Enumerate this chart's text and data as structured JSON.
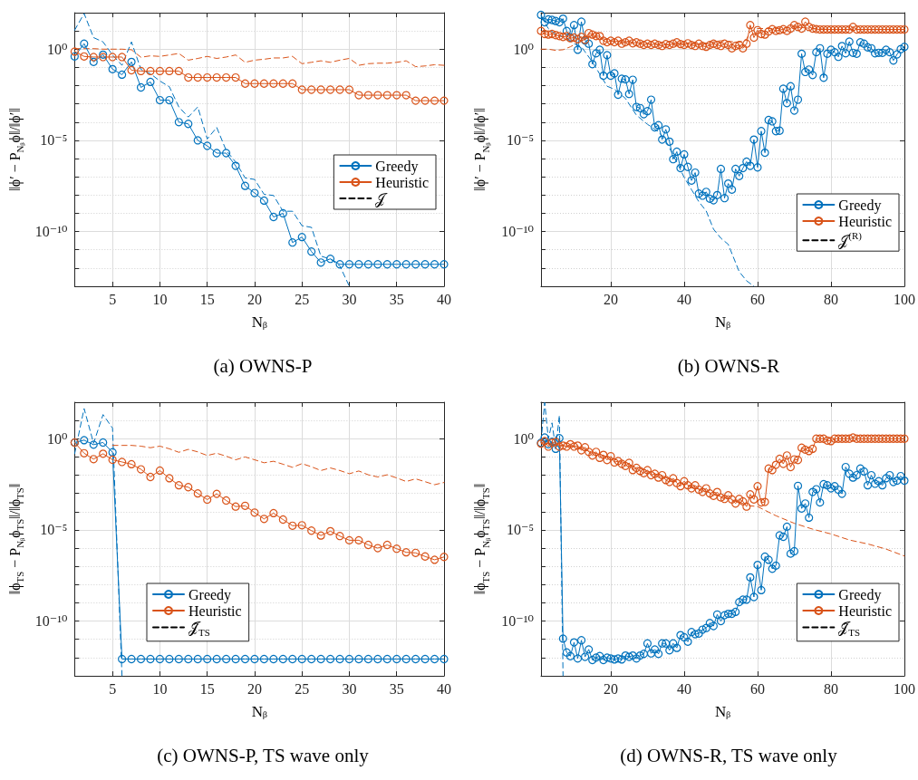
{
  "chart_data": [
    {
      "type": "line",
      "title": "(a) OWNS-P",
      "xlabel": "Nᵦ",
      "ylabel": "‖ϕ′ − P$_{Nᵦ}$ϕ‖/‖ϕ′‖",
      "log": "y",
      "grid": true,
      "legend": "right",
      "xlim": [
        1,
        40
      ],
      "xticks": [
        5,
        10,
        15,
        20,
        25,
        30,
        35,
        40
      ],
      "ylim": [
        1e-13,
        100
      ],
      "yticks": [
        {
          "value": 1e-13,
          "label": null
        },
        {
          "value": 1e-12,
          "label": null
        },
        {
          "value": 1e-11,
          "label": null
        },
        {
          "value": 1e-10,
          "label": "10⁻¹⁰"
        },
        {
          "value": 1e-09,
          "label": null
        },
        {
          "value": 1e-08,
          "label": null
        },
        {
          "value": 1e-07,
          "label": null
        },
        {
          "value": 1e-06,
          "label": null
        },
        {
          "value": 1e-05,
          "label": "10⁻⁵"
        },
        {
          "value": 0.0001,
          "label": null
        },
        {
          "value": 0.001,
          "label": null
        },
        {
          "value": 0.01,
          "label": null
        },
        {
          "value": 0.1,
          "label": null
        },
        {
          "value": 1,
          "label": "10⁰"
        },
        {
          "value": 10,
          "label": null
        },
        {
          "value": 100,
          "label": null
        }
      ],
      "x": [
        1,
        2,
        3,
        4,
        5,
        6,
        7,
        8,
        9,
        10,
        11,
        12,
        13,
        14,
        15,
        16,
        17,
        18,
        19,
        20,
        21,
        22,
        23,
        24,
        25,
        26,
        27,
        28,
        29,
        30,
        31,
        32,
        33,
        34,
        35,
        36,
        37,
        38,
        39,
        40
      ],
      "series": [
        {
          "color": "#0072bd",
          "marker": "none",
          "line_style": "dashed",
          "x": [
            1,
            2,
            3,
            4,
            5,
            6,
            7,
            8,
            9,
            10,
            11,
            12,
            13,
            14,
            15,
            16,
            17,
            18,
            19,
            20,
            21,
            22,
            23,
            24,
            25,
            26,
            27,
            28,
            29,
            30
          ],
          "values": [
            11,
            90,
            4.3,
            2.5,
            0.48,
            0.13,
            2.5,
            0.078,
            0.045,
            0.018,
            0.0087,
            0.00068,
            0.00019,
            0.00068,
            1.2e-05,
            5.1e-05,
            2.8e-06,
            6.5e-07,
            8.7e-08,
            7.2e-08,
            1.1e-08,
            9.5e-09,
            1.3e-09,
            1.3e-09,
            2.1e-10,
            1.7e-10,
            4.5e-12,
            3.1e-12,
            1.3e-12,
            1e-13
          ]
        },
        {
          "color": "#d95319",
          "marker": "none",
          "line_style": "dashed",
          "values": [
            1.07,
            1.07,
            1.07,
            1,
            1,
            1,
            0.93,
            0.36,
            0.43,
            0.4,
            0.48,
            0.58,
            0.25,
            0.31,
            0.4,
            0.31,
            0.37,
            0.48,
            0.19,
            0.25,
            0.28,
            0.33,
            0.33,
            0.4,
            0.16,
            0.19,
            0.23,
            0.19,
            0.25,
            0.31,
            0.13,
            0.16,
            0.17,
            0.17,
            0.19,
            0.23,
            0.11,
            0.12,
            0.14,
            0.13
          ]
        },
        {
          "name": "Greedy",
          "color": "#0072bd",
          "marker": "circle",
          "values": [
            0.4,
            2,
            0.2,
            0.5,
            0.08,
            0.04,
            0.2,
            0.008,
            0.016,
            0.0016,
            0.0016,
            0.0001,
            8e-05,
            1e-05,
            5e-06,
            2e-06,
            2e-06,
            4e-07,
            3.2e-08,
            1.3e-08,
            5e-09,
            6.3e-10,
            1e-09,
            2.5e-11,
            5e-11,
            8e-12,
            2e-12,
            3.2e-12,
            1.6e-12,
            1.6e-12,
            1.6e-12,
            1.6e-12,
            1.6e-12,
            1.6e-12,
            1.6e-12,
            1.6e-12,
            1.6e-12,
            1.6e-12,
            1.6e-12,
            1.6e-12
          ]
        },
        {
          "name": "Heuristic",
          "color": "#d95319",
          "marker": "circle",
          "values": [
            0.74,
            0.4,
            0.37,
            0.37,
            0.37,
            0.37,
            0.07,
            0.063,
            0.063,
            0.063,
            0.063,
            0.063,
            0.028,
            0.028,
            0.028,
            0.028,
            0.028,
            0.028,
            0.013,
            0.013,
            0.013,
            0.013,
            0.013,
            0.013,
            0.006,
            0.006,
            0.006,
            0.006,
            0.006,
            0.006,
            0.003,
            0.003,
            0.003,
            0.003,
            0.003,
            0.003,
            0.0015,
            0.0015,
            0.0015,
            0.0015
          ]
        },
        {
          "name": "𝒥",
          "color": "#000000",
          "marker": "none",
          "line_style": "dashed",
          "values": [
            null,
            null,
            null,
            null,
            null,
            null,
            null,
            null,
            null,
            null,
            null,
            null,
            null,
            null,
            null,
            null,
            null,
            null,
            null,
            null,
            null,
            null,
            null,
            null,
            null,
            null,
            null,
            null,
            null,
            null,
            null,
            null,
            null,
            null,
            null,
            null,
            null,
            null,
            null,
            null
          ]
        }
      ]
    },
    {
      "type": "line",
      "title": "(b) OWNS-R",
      "xlabel": "Nᵦ",
      "ylabel": "‖ϕ′ − P$_{Nᵦ}$ϕ‖/‖ϕ′‖",
      "log": "y",
      "grid": true,
      "legend": "bottom right",
      "xlim": [
        1,
        100
      ],
      "xticks": [
        20,
        40,
        60,
        80,
        100
      ],
      "ylim": [
        1e-13,
        100
      ],
      "yticks": [
        {
          "value": 1e-13,
          "label": null
        },
        {
          "value": 1e-12,
          "label": null
        },
        {
          "value": 1e-11,
          "label": null
        },
        {
          "value": 1e-10,
          "label": "10⁻¹⁰"
        },
        {
          "value": 1e-09,
          "label": null
        },
        {
          "value": 1e-08,
          "label": null
        },
        {
          "value": 1e-07,
          "label": null
        },
        {
          "value": 1e-06,
          "label": null
        },
        {
          "value": 1e-05,
          "label": "10⁻⁵"
        },
        {
          "value": 0.0001,
          "label": null
        },
        {
          "value": 0.001,
          "label": null
        },
        {
          "value": 0.01,
          "label": null
        },
        {
          "value": 0.1,
          "label": null
        },
        {
          "value": 1,
          "label": "10⁰"
        },
        {
          "value": 10,
          "label": null
        },
        {
          "value": 100,
          "label": null
        }
      ],
      "x": [
        1,
        2,
        3,
        4,
        5,
        6,
        7,
        8,
        9,
        10,
        11,
        12,
        13,
        14,
        15,
        16,
        17,
        18,
        19,
        20,
        21,
        22,
        23,
        24,
        25,
        26,
        27,
        28,
        29,
        30,
        31,
        32,
        33,
        34,
        35,
        36,
        37,
        38,
        39,
        40,
        41,
        42,
        43,
        44,
        45,
        46,
        47,
        48,
        49,
        50,
        51,
        52,
        53,
        54,
        55,
        56,
        57,
        58,
        59,
        60,
        61,
        62,
        63,
        64,
        65,
        66,
        67,
        68,
        69,
        70,
        71,
        72,
        73,
        74,
        75,
        76,
        77,
        78,
        79,
        80,
        81,
        82,
        83,
        84,
        85,
        86,
        87,
        88,
        89,
        90,
        91,
        92,
        93,
        94,
        95,
        96,
        97,
        98,
        99,
        100
      ],
      "series": [
        {
          "color": "#0072bd",
          "marker": "none",
          "line_style": "dashed",
          "x": [
            1,
            3,
            5,
            8,
            10,
            12,
            15,
            17,
            19,
            21,
            24,
            27,
            30,
            33,
            35,
            38,
            40,
            42,
            44,
            46,
            48,
            50,
            52,
            55,
            57,
            59
          ],
          "values": [
            63,
            13.5,
            6.3,
            4.3,
            2,
            1.35,
            0.2,
            0.043,
            0.0093,
            0.0063,
            0.002,
            0.00024,
            7.6e-05,
            3e-05,
            9.3e-06,
            6.3e-07,
            9.3e-08,
            2e-08,
            4.3e-09,
            1.35e-09,
            1.35e-10,
            4.3e-11,
            2e-11,
            6.3e-13,
            2e-13,
            1e-13
          ]
        },
        {
          "color": "#d95319",
          "marker": "none",
          "line_style": "dashed",
          "x": [
            1,
            3,
            5,
            7,
            9,
            12,
            15,
            20,
            25,
            30,
            35,
            40,
            45,
            50,
            55,
            57,
            58,
            60,
            65,
            70,
            75,
            80,
            90,
            100
          ],
          "values": [
            1,
            1,
            0.86,
            0.93,
            1.35,
            2.9,
            5.2,
            2.9,
            2.4,
            2,
            1.7,
            2,
            2,
            2.9,
            2.4,
            3.5,
            9.3,
            13.5,
            13.5,
            16.6,
            13.5,
            12,
            12,
            12
          ]
        },
        {
          "name": "Greedy",
          "color": "#0072bd",
          "marker": "circle",
          "values": [
            76,
            30,
            43,
            40,
            35,
            30,
            47,
            10,
            4.3,
            21,
            0.93,
            32,
            3,
            2,
            0.15,
            0.59,
            0.93,
            0.035,
            0.47,
            0.035,
            0.047,
            0.0032,
            0.024,
            0.022,
            0.0035,
            0.021,
            0.00068,
            0.00059,
            0.00027,
            0.0004,
            0.0017,
            5.2e-05,
            6.8e-05,
            1.1e-05,
            4e-05,
            8.5e-06,
            9.3e-07,
            2.4e-06,
            3e-07,
            1.7e-06,
            3.5e-07,
            6.3e-08,
            1.7e-07,
            1.2e-08,
            9.3e-09,
            1.5e-08,
            6.3e-09,
            5.2e-09,
            1e-08,
            2.7e-07,
            6.8e-09,
            4.3e-08,
            2e-08,
            2.7e-07,
            1.1e-07,
            3e-07,
            6.8e-07,
            4e-07,
            1.1e-05,
            3.3e-07,
            3.2e-05,
            2.1e-06,
            0.00013,
            0.00011,
            3.2e-05,
            3.4e-05,
            0.0068,
            0.0011,
            0.0093,
            0.00043,
            0.0017,
            0.56,
            0.056,
            0.076,
            0.038,
            0.68,
            1.12,
            0.027,
            0.56,
            0.93,
            0.68,
            0.38,
            1.48,
            0.59,
            2.6,
            0.63,
            0.56,
            2.4,
            2,
            1.26,
            1.12,
            0.59,
            0.63,
            0.63,
            0.93,
            0.68,
            0.24,
            0.52,
            1,
            1.35
          ]
        },
        {
          "name": "Heuristic",
          "color": "#d95319",
          "marker": "circle",
          "values": [
            10,
            6.8,
            6.3,
            6.8,
            5.9,
            5.2,
            4.7,
            5.2,
            4,
            4.3,
            3.5,
            4.7,
            3.2,
            7.6,
            6.3,
            5.2,
            5.2,
            2.9,
            2.4,
            2.9,
            2.4,
            2.9,
            2,
            2.4,
            2.9,
            2.1,
            2.4,
            2,
            1.7,
            2,
            1.7,
            2,
            1.7,
            1.5,
            1.9,
            1.7,
            2,
            2.4,
            1.9,
            1.7,
            2.1,
            1.7,
            1.5,
            2,
            1.5,
            1.35,
            1.7,
            2,
            1.7,
            1.5,
            2,
            1.7,
            1.12,
            1.5,
            1.7,
            1.12,
            2,
            21,
            4.3,
            11,
            6.8,
            6.3,
            9.3,
            12.6,
            10,
            11,
            12.6,
            10,
            13.5,
            21,
            16.6,
            13.5,
            32,
            16.6,
            13.5,
            12.6,
            12,
            12,
            12,
            12,
            12,
            12,
            12,
            12,
            12,
            16.6,
            12,
            12,
            12,
            12,
            12,
            12,
            12,
            12,
            12,
            12,
            12,
            12,
            12,
            12
          ]
        },
        {
          "name": "𝒥$^{(R)}$",
          "color": "#000000",
          "marker": "none",
          "line_style": "dashed",
          "values": [
            null,
            null,
            null,
            null,
            null,
            null,
            null,
            null,
            null,
            null,
            null,
            null,
            null,
            null,
            null,
            null,
            null,
            null,
            null,
            null,
            null,
            null,
            null,
            null,
            null,
            null,
            null,
            null,
            null,
            null,
            null,
            null,
            null,
            null,
            null,
            null,
            null,
            null,
            null,
            null,
            null,
            null,
            null,
            null,
            null,
            null,
            null,
            null,
            null,
            null,
            null,
            null,
            null,
            null,
            null,
            null,
            null,
            null,
            null,
            null,
            null,
            null,
            null,
            null,
            null,
            null,
            null,
            null,
            null,
            null,
            null,
            null,
            null,
            null,
            null,
            null,
            null,
            null,
            null,
            null,
            null,
            null,
            null,
            null,
            null,
            null,
            null,
            null,
            null,
            null,
            null,
            null,
            null,
            null,
            null,
            null,
            null,
            null,
            null,
            null
          ]
        }
      ]
    },
    {
      "type": "line",
      "title": "(c) OWNS-P, TS wave only",
      "xlabel": "Nᵦ",
      "ylabel": "‖ϕ$_{TS}$ − P$_{Nᵦ}$ϕ$_{TS}$‖/‖ϕ$_{TS}$‖",
      "log": "y",
      "grid": true,
      "legend": "bottom left",
      "xlim": [
        1,
        40
      ],
      "xticks": [
        5,
        10,
        15,
        20,
        25,
        30,
        35,
        40
      ],
      "ylim": [
        1e-13,
        100
      ],
      "yticks": [
        {
          "value": 1e-13,
          "label": null
        },
        {
          "value": 1e-12,
          "label": null
        },
        {
          "value": 1e-11,
          "label": null
        },
        {
          "value": 1e-10,
          "label": "10⁻¹⁰"
        },
        {
          "value": 1e-09,
          "label": null
        },
        {
          "value": 1e-08,
          "label": null
        },
        {
          "value": 1e-07,
          "label": null
        },
        {
          "value": 1e-06,
          "label": null
        },
        {
          "value": 1e-05,
          "label": "10⁻⁵"
        },
        {
          "value": 0.0001,
          "label": null
        },
        {
          "value": 0.001,
          "label": null
        },
        {
          "value": 0.01,
          "label": null
        },
        {
          "value": 0.1,
          "label": null
        },
        {
          "value": 1,
          "label": "10⁰"
        },
        {
          "value": 10,
          "label": null
        },
        {
          "value": 100,
          "label": null
        }
      ],
      "x": [
        1,
        2,
        3,
        4,
        5,
        6,
        7,
        8,
        9,
        10,
        11,
        12,
        13,
        14,
        15,
        16,
        17,
        18,
        19,
        20,
        21,
        22,
        23,
        24,
        25,
        26,
        27,
        28,
        29,
        30,
        31,
        32,
        33,
        34,
        35,
        36,
        37,
        38,
        39,
        40
      ],
      "series": [
        {
          "color": "#0072bd",
          "marker": "none",
          "line_style": "dashed",
          "x": [
            1,
            2,
            3,
            4,
            5,
            6
          ],
          "values": [
            0.15,
            45,
            0.56,
            21,
            3.8,
            1e-13
          ]
        },
        {
          "color": "#d95319",
          "marker": "none",
          "line_style": "dashed",
          "x": [
            5,
            6,
            7,
            8,
            9,
            10,
            11,
            12,
            13,
            14,
            15,
            16,
            17,
            18,
            19,
            20,
            21,
            22,
            23,
            24,
            25,
            26,
            27,
            28,
            29,
            30,
            31,
            32,
            33,
            34,
            35,
            36,
            37,
            38,
            39,
            40
          ],
          "values": [
            0.43,
            0.43,
            0.43,
            0.39,
            0.32,
            0.39,
            0.28,
            0.18,
            0.26,
            0.19,
            0.12,
            0.16,
            0.11,
            0.07,
            0.1,
            0.07,
            0.048,
            0.058,
            0.04,
            0.027,
            0.043,
            0.029,
            0.018,
            0.025,
            0.018,
            0.012,
            0.017,
            0.0105,
            0.008,
            0.0105,
            0.0071,
            0.0045,
            0.0063,
            0.0044,
            0.003,
            0.004
          ]
        },
        {
          "name": "Greedy",
          "color": "#0072bd",
          "marker": "circle",
          "values": [
            0.62,
            0.83,
            0.47,
            0.62,
            0.18,
            8.3e-13,
            8.3e-13,
            8.3e-13,
            8.3e-13,
            8.3e-13,
            8.3e-13,
            8.3e-13,
            8.3e-13,
            8.3e-13,
            8.3e-13,
            8.3e-13,
            8.3e-13,
            8.3e-13,
            8.3e-13,
            8.3e-13,
            8.3e-13,
            8.3e-13,
            8.3e-13,
            8.3e-13,
            8.3e-13,
            8.3e-13,
            8.3e-13,
            8.3e-13,
            8.3e-13,
            8.3e-13,
            8.3e-13,
            8.3e-13,
            8.3e-13,
            8.3e-13,
            8.3e-13,
            8.3e-13,
            8.3e-13,
            8.3e-13,
            8.3e-13,
            8.3e-13
          ]
        },
        {
          "name": "Heuristic",
          "color": "#d95319",
          "marker": "circle",
          "values": [
            0.62,
            0.16,
            0.076,
            0.15,
            0.07,
            0.053,
            0.04,
            0.021,
            0.008,
            0.018,
            0.0068,
            0.0028,
            0.0022,
            0.001,
            0.00046,
            0.00095,
            0.00041,
            0.00019,
            0.00021,
            8.9e-05,
            4e-05,
            8.3e-05,
            3.7e-05,
            1.7e-05,
            1.8e-05,
            9.1e-06,
            4.9e-06,
            8.5e-06,
            4.6e-06,
            2.7e-06,
            2.7e-06,
            1.5e-06,
            1e-06,
            1.5e-06,
            9.3e-07,
            5.9e-07,
            5.5e-07,
            3.5e-07,
            2.3e-07,
            3.3e-07
          ]
        },
        {
          "name": "𝒥̂$_{TS}$",
          "color": "#000000",
          "marker": "none",
          "line_style": "dashed",
          "values": [
            null,
            null,
            null,
            null,
            null,
            null,
            null,
            null,
            null,
            null,
            null,
            null,
            null,
            null,
            null,
            null,
            null,
            null,
            null,
            null,
            null,
            null,
            null,
            null,
            null,
            null,
            null,
            null,
            null,
            null,
            null,
            null,
            null,
            null,
            null,
            null,
            null,
            null,
            null,
            null
          ]
        }
      ]
    },
    {
      "type": "line",
      "title": "(d) OWNS-R, TS wave only",
      "xlabel": "Nᵦ",
      "ylabel": "‖ϕ$_{TS}$ − P$_{Nᵦ}$ϕ$_{TS}$‖/‖ϕ$_{TS}$‖",
      "log": "y",
      "grid": true,
      "legend": "bottom right",
      "xlim": [
        1,
        100
      ],
      "xticks": [
        20,
        40,
        60,
        80,
        100
      ],
      "ylim": [
        1e-13,
        100
      ],
      "yticks": [
        {
          "value": 1e-13,
          "label": null
        },
        {
          "value": 1e-12,
          "label": null
        },
        {
          "value": 1e-11,
          "label": null
        },
        {
          "value": 1e-10,
          "label": "10⁻¹⁰"
        },
        {
          "value": 1e-09,
          "label": null
        },
        {
          "value": 1e-08,
          "label": null
        },
        {
          "value": 1e-07,
          "label": null
        },
        {
          "value": 1e-06,
          "label": null
        },
        {
          "value": 1e-05,
          "label": "10⁻⁵"
        },
        {
          "value": 0.0001,
          "label": null
        },
        {
          "value": 0.001,
          "label": null
        },
        {
          "value": 0.01,
          "label": null
        },
        {
          "value": 0.1,
          "label": null
        },
        {
          "value": 1,
          "label": "10⁰"
        },
        {
          "value": 10,
          "label": null
        },
        {
          "value": 100,
          "label": null
        }
      ],
      "x": [
        1,
        2,
        3,
        4,
        5,
        6,
        7,
        8,
        9,
        10,
        11,
        12,
        13,
        14,
        15,
        16,
        17,
        18,
        19,
        20,
        21,
        22,
        23,
        24,
        25,
        26,
        27,
        28,
        29,
        30,
        31,
        32,
        33,
        34,
        35,
        36,
        37,
        38,
        39,
        40,
        41,
        42,
        43,
        44,
        45,
        46,
        47,
        48,
        49,
        50,
        51,
        52,
        53,
        54,
        55,
        56,
        57,
        58,
        59,
        60,
        61,
        62,
        63,
        64,
        65,
        66,
        67,
        68,
        69,
        70,
        71,
        72,
        73,
        74,
        75,
        76,
        77,
        78,
        79,
        80,
        81,
        82,
        83,
        84,
        85,
        86,
        87,
        88,
        89,
        90,
        91,
        92,
        93,
        94,
        95,
        96,
        97,
        98,
        99,
        100
      ],
      "series": [
        {
          "color": "#0072bd",
          "marker": "none",
          "line_style": "dashed",
          "x": [
            1,
            2,
            3,
            4,
            5,
            6,
            7
          ],
          "values": [
            0.7,
            95,
            1,
            7.4,
            0.28,
            19,
            1e-13
          ]
        },
        {
          "color": "#d95319",
          "marker": "none",
          "line_style": "dashed",
          "x": [
            1,
            10,
            20,
            30,
            40,
            50,
            58,
            60,
            65,
            70,
            75,
            80,
            85,
            90,
            95,
            100
          ],
          "values": [
            0.6,
            0.37,
            0.089,
            0.017,
            0.0032,
            0.00068,
            0.00021,
            0.00019,
            6e-05,
            2.3e-05,
            1.1e-05,
            6e-06,
            2.8e-06,
            1.7e-06,
            8.9e-07,
            3.7e-07
          ]
        },
        {
          "name": "Greedy",
          "color": "#0072bd",
          "marker": "circle",
          "values": [
            0.6,
            1.17,
            0.5,
            0.68,
            0.28,
            1.07,
            1.1e-11,
            1.9e-12,
            1.2e-12,
            6.8e-12,
            8.9e-13,
            8.9e-12,
            1.1e-12,
            2.8e-12,
            7.4e-13,
            1e-12,
            1.2e-12,
            7.4e-13,
            1e-12,
            8.9e-13,
            7.9e-13,
            8.9e-13,
            7.9e-13,
            1.3e-12,
            1.1e-12,
            1.3e-12,
            8.9e-13,
            1.3e-12,
            1.6e-12,
            6e-12,
            1.7e-12,
            2.8e-12,
            1.6e-12,
            6e-12,
            6e-12,
            2.5e-12,
            6e-12,
            3.4e-12,
            1.7e-11,
            1.3e-11,
            7.4e-12,
            2.5e-11,
            1.9e-11,
            2.1e-11,
            3.4e-11,
            4.2e-11,
            7.9e-11,
            5.4e-11,
            2.3e-10,
            1e-10,
            2.1e-10,
            2.5e-10,
            2.5e-10,
            3.2e-10,
            1.1e-09,
            1.5e-09,
            1.5e-09,
            2.5e-08,
            2.1e-09,
            1.2e-07,
            5e-09,
            3.4e-07,
            2.3e-07,
            7.4e-08,
            1.1e-07,
            5e-06,
            4.2e-06,
            1.5e-05,
            5e-07,
            6.8e-07,
            0.0026,
            0.00015,
            0.00028,
            4.7e-05,
            0.0012,
            0.0017,
            0.00032,
            0.0032,
            0.0028,
            0.0019,
            0.0025,
            0.0016,
            0.00095,
            0.028,
            0.012,
            0.0074,
            0.01,
            0.023,
            0.016,
            0.0028,
            0.01,
            0.0034,
            0.0047,
            0.0028,
            0.0068,
            0.01,
            0.0042,
            0.005,
            0.0089,
            0.005
          ]
        },
        {
          "name": "Heuristic",
          "color": "#d95319",
          "marker": "circle",
          "values": [
            0.54,
            0.74,
            0.37,
            0.6,
            0.68,
            0.37,
            0.42,
            0.37,
            0.5,
            0.37,
            0.42,
            0.23,
            0.34,
            0.19,
            0.12,
            0.19,
            0.089,
            0.13,
            0.068,
            0.11,
            0.05,
            0.06,
            0.042,
            0.032,
            0.047,
            0.019,
            0.025,
            0.017,
            0.013,
            0.019,
            0.01,
            0.012,
            0.0074,
            0.01,
            0.0054,
            0.0042,
            0.0068,
            0.0037,
            0.0025,
            0.0047,
            0.0028,
            0.0019,
            0.0028,
            0.0016,
            0.0012,
            0.0019,
            0.001,
            0.00074,
            0.0012,
            0.0006,
            0.0005,
            0.00079,
            0.00047,
            0.00028,
            0.0005,
            0.00037,
            0.00019,
            0.00089,
            0.00047,
            0.0025,
            0.00032,
            0.00034,
            0.023,
            0.019,
            0.037,
            0.079,
            0.042,
            0.12,
            0.028,
            0.074,
            0.068,
            0.32,
            0.25,
            0.21,
            0.28,
            1,
            1,
            1,
            0.79,
            0.74,
            1,
            1,
            1,
            1,
            1,
            1.17,
            1,
            1,
            1,
            1,
            1,
            1,
            1,
            1,
            1,
            1,
            1,
            1,
            1,
            1
          ]
        },
        {
          "name": "𝒥̂$_{TS}$",
          "color": "#000000",
          "marker": "none",
          "line_style": "dashed",
          "values": [
            null,
            null,
            null,
            null,
            null,
            null,
            null,
            null,
            null,
            null,
            null,
            null,
            null,
            null,
            null,
            null,
            null,
            null,
            null,
            null,
            null,
            null,
            null,
            null,
            null,
            null,
            null,
            null,
            null,
            null,
            null,
            null,
            null,
            null,
            null,
            null,
            null,
            null,
            null,
            null,
            null,
            null,
            null,
            null,
            null,
            null,
            null,
            null,
            null,
            null,
            null,
            null,
            null,
            null,
            null,
            null,
            null,
            null,
            null,
            null,
            null,
            null,
            null,
            null,
            null,
            null,
            null,
            null,
            null,
            null,
            null,
            null,
            null,
            null,
            null,
            null,
            null,
            null,
            null,
            null,
            null,
            null,
            null,
            null,
            null,
            null,
            null,
            null,
            null,
            null,
            null,
            null,
            null,
            null,
            null,
            null,
            null,
            null,
            null,
            null
          ]
        }
      ]
    }
  ]
}
